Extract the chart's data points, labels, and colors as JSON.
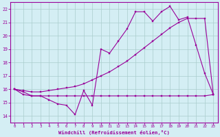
{
  "x": [
    0,
    1,
    2,
    3,
    4,
    5,
    6,
    7,
    8,
    9,
    10,
    11,
    12,
    13,
    14,
    15,
    16,
    17,
    18,
    19,
    20,
    21,
    22,
    23
  ],
  "line_jagged": [
    16.0,
    15.8,
    15.5,
    15.5,
    15.2,
    14.9,
    14.8,
    14.1,
    15.9,
    14.8,
    19.0,
    18.7,
    19.6,
    20.5,
    21.8,
    21.8,
    21.1,
    21.8,
    22.2,
    21.2,
    21.4,
    19.3,
    17.2,
    15.6
  ],
  "line_trend": [
    16.0,
    15.9,
    15.8,
    15.8,
    15.9,
    16.0,
    16.1,
    16.2,
    16.4,
    16.7,
    17.0,
    17.3,
    17.7,
    18.1,
    18.6,
    19.1,
    19.6,
    20.1,
    20.6,
    21.0,
    21.3,
    21.3,
    21.3,
    15.6
  ],
  "line_flat": [
    16.0,
    15.6,
    15.5,
    15.5,
    15.5,
    15.5,
    15.5,
    15.5,
    15.5,
    15.5,
    15.5,
    15.5,
    15.5,
    15.5,
    15.5,
    15.5,
    15.5,
    15.5,
    15.5,
    15.5,
    15.5,
    15.5,
    15.5,
    15.6
  ],
  "line_color": "#990099",
  "bg_color": "#d4eef4",
  "grid_color": "#aacccc",
  "xlabel": "Windchill (Refroidissement éolien,°C)",
  "xlim": [
    -0.5,
    23.5
  ],
  "ylim": [
    13.5,
    22.5
  ],
  "yticks": [
    14,
    15,
    16,
    17,
    18,
    19,
    20,
    21,
    22
  ],
  "xticks": [
    0,
    1,
    2,
    3,
    4,
    5,
    6,
    7,
    8,
    9,
    10,
    11,
    12,
    13,
    14,
    15,
    16,
    17,
    18,
    19,
    20,
    21,
    22,
    23
  ]
}
